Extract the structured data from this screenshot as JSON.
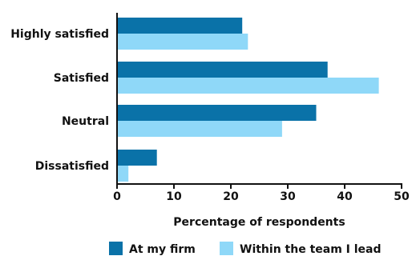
{
  "chart_data": {
    "type": "bar",
    "orientation": "horizontal",
    "categories": [
      "Highly satisfied",
      "Satisfied",
      "Neutral",
      "Dissatisfied"
    ],
    "series": [
      {
        "name": "At my firm",
        "values": [
          22,
          37,
          35,
          7
        ],
        "color": "#0a72a8"
      },
      {
        "name": "Within the team I lead",
        "values": [
          23,
          46,
          29,
          2
        ],
        "color": "#8fd8f8"
      }
    ],
    "xlabel": "Percentage of respondents",
    "xlim": [
      0,
      50
    ],
    "xticks": [
      0,
      10,
      20,
      30,
      40,
      50
    ],
    "grid": false,
    "legend_position": "bottom"
  }
}
